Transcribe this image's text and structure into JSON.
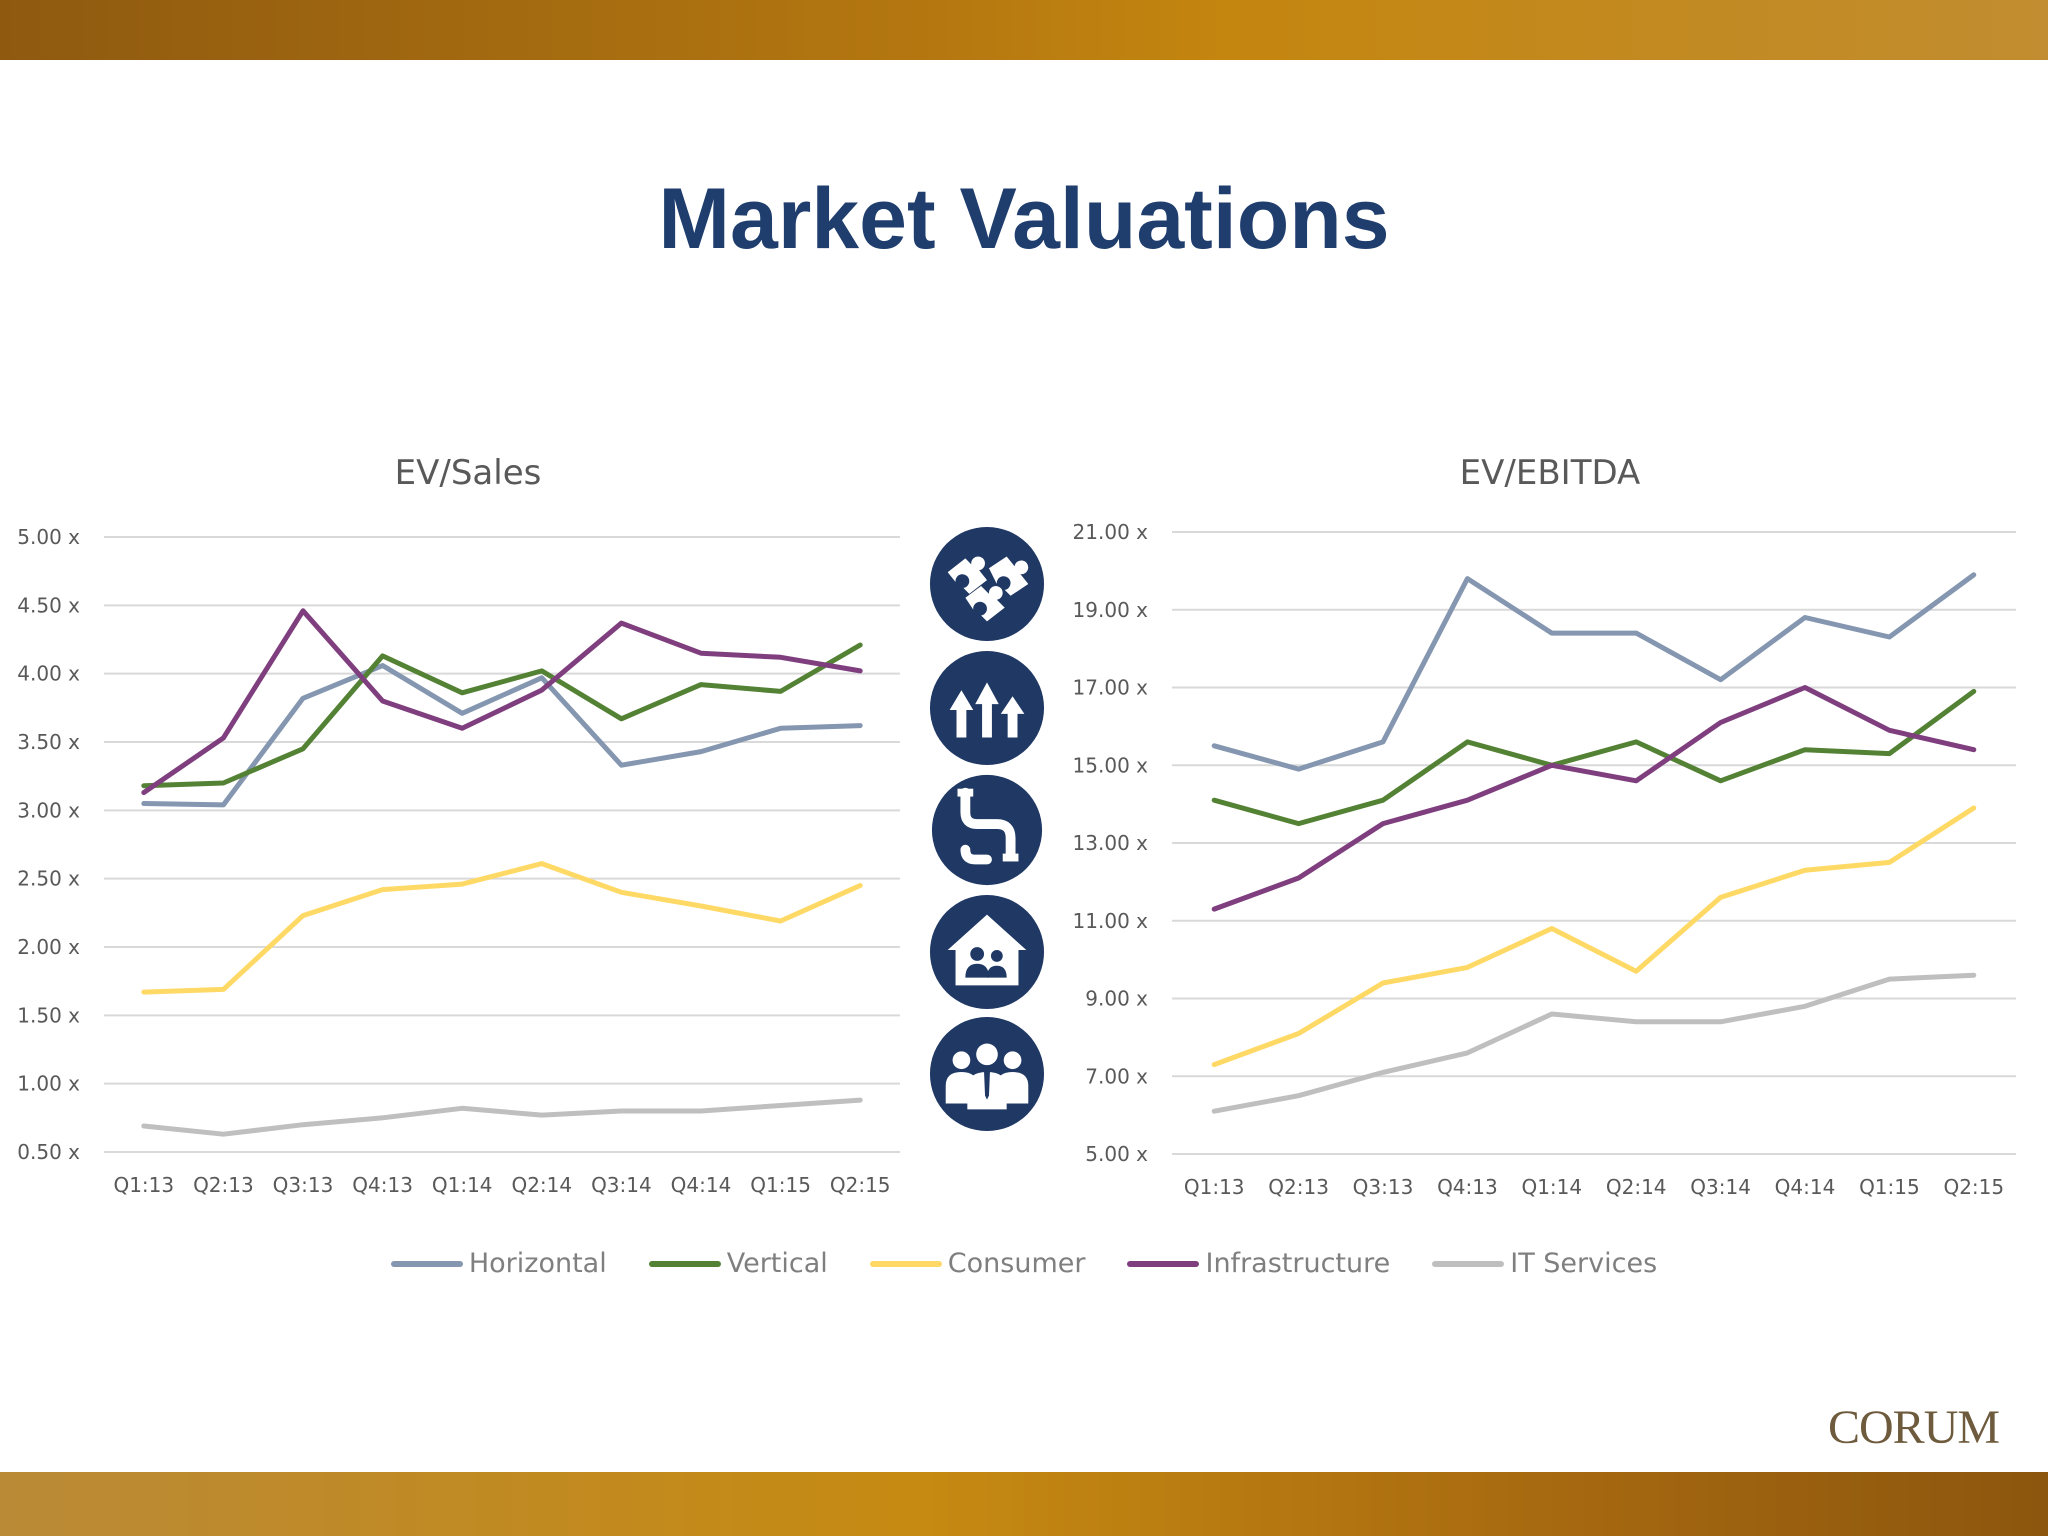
{
  "page_title": "Market Valuations",
  "logo_text": "CORUM",
  "sector_icons": [
    "puzzle-icon",
    "growth-arrows-icon",
    "pipe-icon",
    "house-people-icon",
    "group-people-icon"
  ],
  "colors": {
    "Horizontal": "#8496b0",
    "Vertical": "#548235",
    "Consumer": "#ffd966",
    "Infrastructure": "#7f3f7f",
    "IT Services": "#bfbfbf",
    "title": "#1f3e6e",
    "icon_bg": "#1f3864"
  },
  "legend": [
    "Horizontal",
    "Vertical",
    "Consumer",
    "Infrastructure",
    "IT Services"
  ],
  "chart_data": [
    {
      "type": "line",
      "title": "EV/Sales",
      "categories": [
        "Q1:13",
        "Q2:13",
        "Q3:13",
        "Q4:13",
        "Q1:14",
        "Q2:14",
        "Q3:14",
        "Q4:14",
        "Q1:15",
        "Q2:15"
      ],
      "ylim": [
        0.5,
        5.0
      ],
      "yticks": [
        5.0,
        4.5,
        4.0,
        3.5,
        3.0,
        2.5,
        2.0,
        1.5,
        1.0,
        0.5
      ],
      "ytick_labels": [
        "5.00 x",
        "4.50 x",
        "4.00 x",
        "3.50 x",
        "3.00 x",
        "2.50 x",
        "2.00 x",
        "1.50 x",
        "1.00 x",
        "0.50 x"
      ],
      "grid": true,
      "legend_position": "bottom",
      "series": [
        {
          "name": "Horizontal",
          "values": [
            3.05,
            3.04,
            3.82,
            4.06,
            3.71,
            3.97,
            3.33,
            3.43,
            3.6,
            3.62
          ]
        },
        {
          "name": "Vertical",
          "values": [
            3.18,
            3.2,
            3.45,
            4.13,
            3.86,
            4.02,
            3.67,
            3.92,
            3.87,
            4.21
          ]
        },
        {
          "name": "Consumer",
          "values": [
            1.67,
            1.69,
            2.23,
            2.42,
            2.46,
            2.61,
            2.4,
            2.3,
            2.19,
            2.45
          ]
        },
        {
          "name": "Infrastructure",
          "values": [
            3.13,
            3.53,
            4.46,
            3.8,
            3.6,
            3.88,
            4.37,
            4.15,
            4.12,
            4.02
          ]
        },
        {
          "name": "IT Services",
          "values": [
            0.69,
            0.63,
            0.7,
            0.75,
            0.82,
            0.77,
            0.8,
            0.8,
            0.84,
            0.88
          ]
        }
      ]
    },
    {
      "type": "line",
      "title": "EV/EBITDA",
      "categories": [
        "Q1:13",
        "Q2:13",
        "Q3:13",
        "Q4:13",
        "Q1:14",
        "Q2:14",
        "Q3:14",
        "Q4:14",
        "Q1:15",
        "Q2:15"
      ],
      "ylim": [
        5.0,
        21.0
      ],
      "yticks": [
        21.0,
        19.0,
        17.0,
        15.0,
        13.0,
        11.0,
        9.0,
        7.0,
        5.0
      ],
      "ytick_labels": [
        "21.00 x",
        "19.00 x",
        "17.00 x",
        "15.00 x",
        "13.00 x",
        "11.00 x",
        "9.00 x",
        "7.00 x",
        "5.00 x"
      ],
      "grid": true,
      "legend_position": "bottom",
      "series": [
        {
          "name": "Horizontal",
          "values": [
            15.5,
            14.9,
            15.6,
            19.8,
            18.4,
            18.4,
            17.2,
            18.8,
            18.3,
            19.9
          ]
        },
        {
          "name": "Vertical",
          "values": [
            14.1,
            13.5,
            14.1,
            15.6,
            15.0,
            15.6,
            14.6,
            15.4,
            15.3,
            16.9
          ]
        },
        {
          "name": "Consumer",
          "values": [
            7.3,
            8.1,
            9.4,
            9.8,
            10.8,
            9.7,
            11.6,
            12.3,
            12.5,
            13.9
          ]
        },
        {
          "name": "Infrastructure",
          "values": [
            11.3,
            12.1,
            13.5,
            14.1,
            15.0,
            14.6,
            16.1,
            17.0,
            15.9,
            15.4
          ]
        },
        {
          "name": "IT Services",
          "values": [
            6.1,
            6.5,
            7.1,
            7.6,
            8.6,
            8.4,
            8.4,
            8.8,
            9.5,
            9.6
          ]
        }
      ]
    }
  ]
}
